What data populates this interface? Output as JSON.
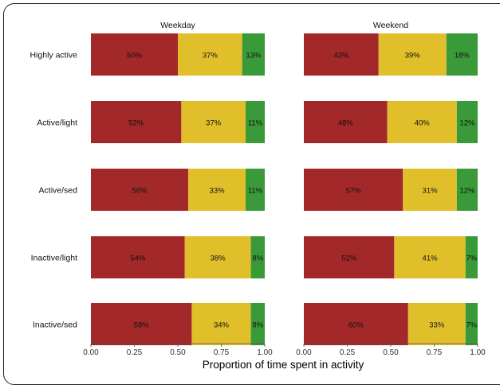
{
  "chart_data": {
    "type": "bar",
    "orientation": "horizontal",
    "stacked": true,
    "xlabel": "Proportion of time spent in activity",
    "xlim": [
      0,
      1
    ],
    "xticks": [
      "0.00",
      "0.25",
      "0.50",
      "0.75",
      "1.00"
    ],
    "grid": false,
    "segment_colors": [
      "#a3282a",
      "#e1bf2b",
      "#3a9a3a"
    ],
    "categories": [
      "Highly active",
      "Active/light",
      "Active/sed",
      "Inactive/light",
      "Inactive/sed"
    ],
    "panels": [
      {
        "title": "Weekday",
        "rows": [
          {
            "values": [
              0.5,
              0.37,
              0.13
            ],
            "labels": [
              "50%",
              "37%",
              "13%"
            ]
          },
          {
            "values": [
              0.52,
              0.37,
              0.11
            ],
            "labels": [
              "52%",
              "37%",
              "11%"
            ]
          },
          {
            "values": [
              0.56,
              0.33,
              0.11
            ],
            "labels": [
              "56%",
              "33%",
              "11%"
            ]
          },
          {
            "values": [
              0.54,
              0.38,
              0.08
            ],
            "labels": [
              "54%",
              "38%",
              "8%"
            ]
          },
          {
            "values": [
              0.58,
              0.34,
              0.08
            ],
            "labels": [
              "58%",
              "34%",
              "8%"
            ]
          }
        ]
      },
      {
        "title": "Weekend",
        "rows": [
          {
            "values": [
              0.43,
              0.39,
              0.18
            ],
            "labels": [
              "43%",
              "39%",
              "18%"
            ]
          },
          {
            "values": [
              0.48,
              0.4,
              0.12
            ],
            "labels": [
              "48%",
              "40%",
              "12%"
            ]
          },
          {
            "values": [
              0.57,
              0.31,
              0.12
            ],
            "labels": [
              "57%",
              "31%",
              "12%"
            ]
          },
          {
            "values": [
              0.52,
              0.41,
              0.07
            ],
            "labels": [
              "52%",
              "41%",
              "7%"
            ]
          },
          {
            "values": [
              0.6,
              0.33,
              0.07
            ],
            "labels": [
              "60%",
              "33%",
              "7%"
            ]
          }
        ]
      }
    ]
  }
}
